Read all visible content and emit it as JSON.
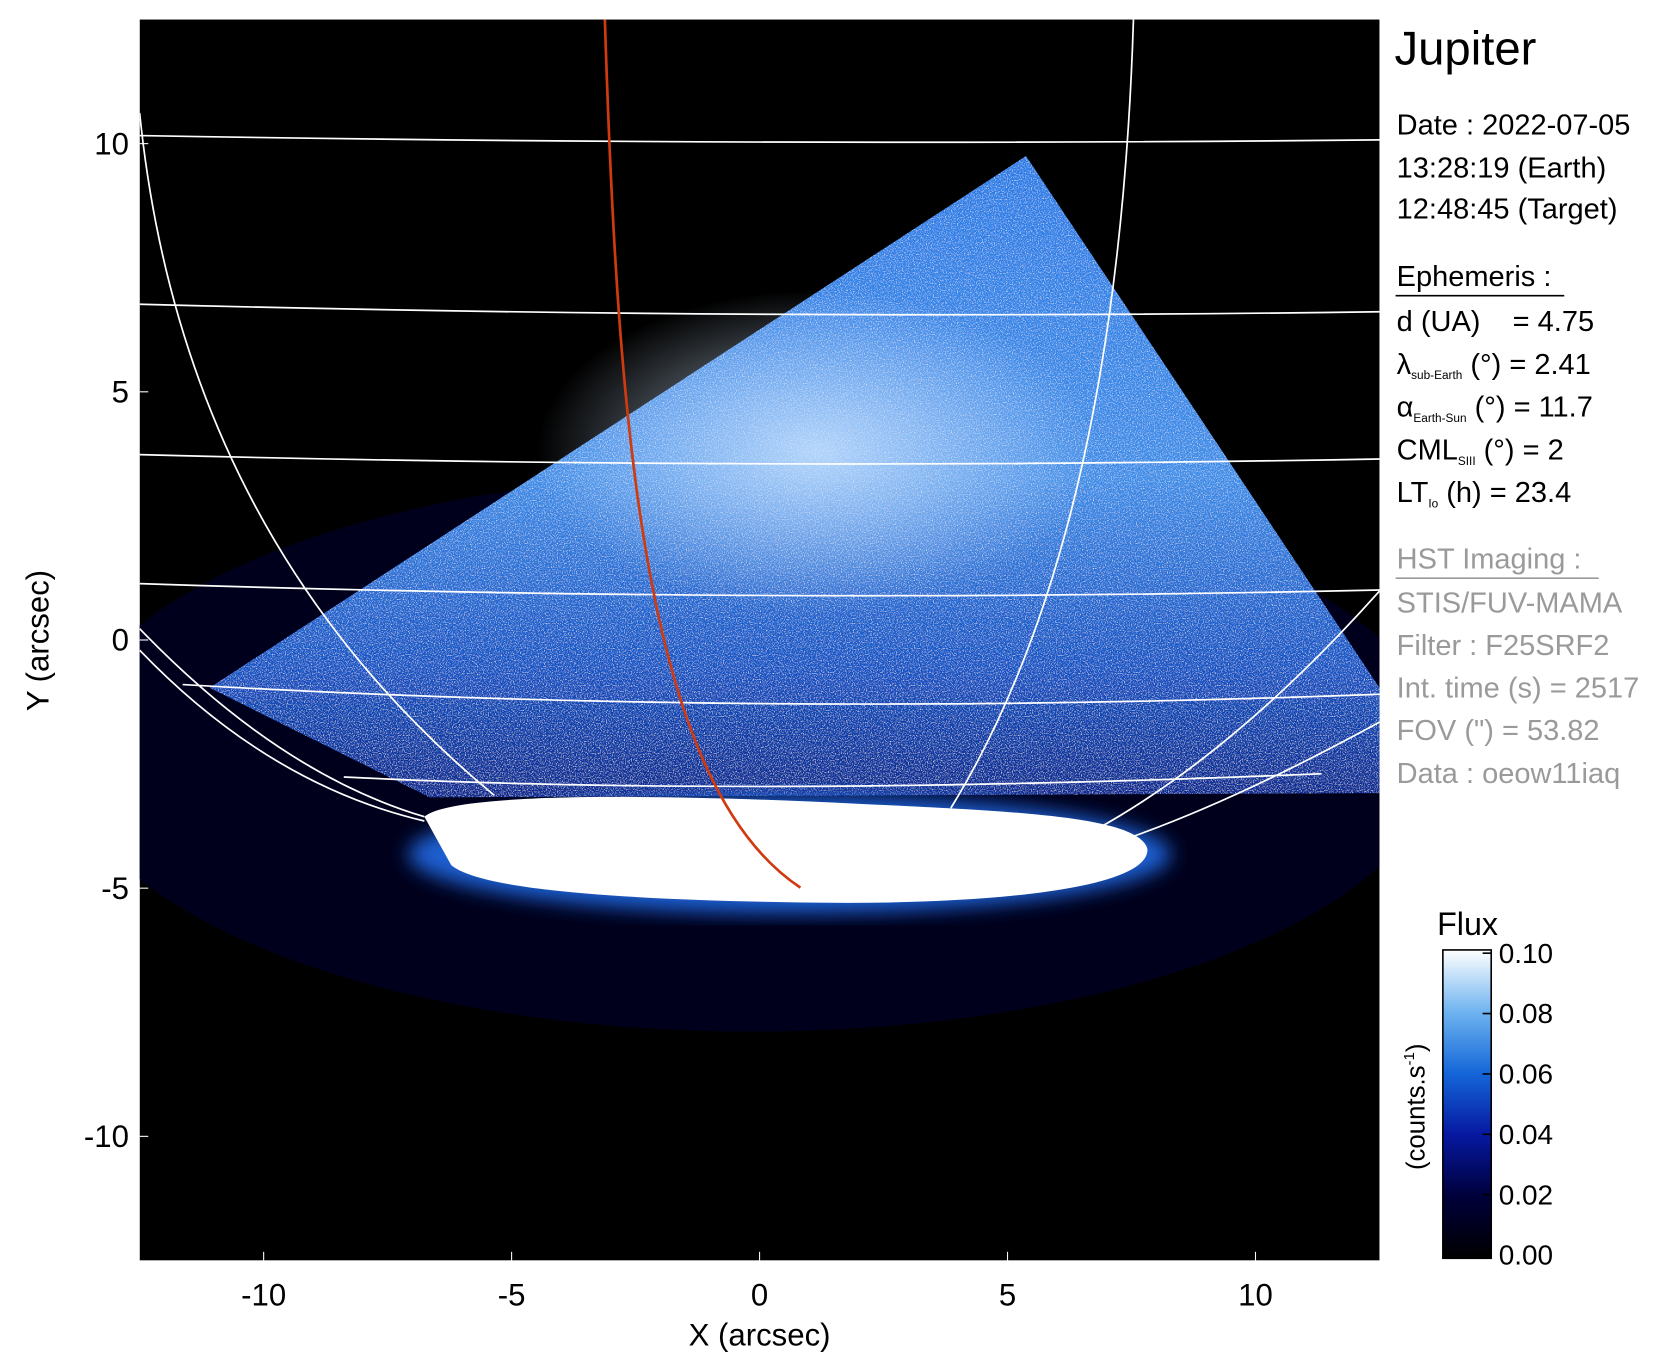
{
  "chart_data": {
    "type": "image",
    "xlabel": "X (arcsec)",
    "ylabel": "Y (arcsec)",
    "xlim": [
      -12.5,
      12.5
    ],
    "ylim": [
      -12.5,
      12.5
    ],
    "xticks": [
      -10,
      -5,
      0,
      5,
      10
    ],
    "yticks": [
      -10,
      -5,
      0,
      5,
      10
    ],
    "colorbar": {
      "title": "Flux",
      "label": "(counts.s",
      "label_sup": "-1",
      "label_end": ")",
      "lim": [
        0,
        0.1
      ],
      "ticks": [
        {
          "value": 0,
          "label": "0.00"
        },
        0.02,
        0.04,
        0.06,
        0.08,
        {
          "value": 0.1,
          "label": "0.10"
        }
      ],
      "colors": [
        "#000000",
        "#00003a",
        "#0618a0",
        "#1466d8",
        "#6fb4f0",
        "#ffffff"
      ]
    }
  },
  "info": {
    "target": "Jupiter",
    "date": [
      "Date : 2022-07-05",
      "13:28:19 (Earth)",
      "12:48:45 (Target)"
    ],
    "ephemeris": {
      "title": "Ephemeris :",
      "rows": [
        {
          "main": "d (UA)    = 4.75"
        },
        {
          "main": "λ",
          "sub": "sub-Earth",
          "rest": " (°) = 2.41"
        },
        {
          "main": "α",
          "sub": "Earth-Sun",
          "rest": " (°) = 11.7"
        },
        {
          "main": "CML",
          "sub": "SIII",
          "rest": " (°) = 2"
        },
        {
          "main": "LT",
          "sub": "Io",
          "rest": " (h) = 23.4"
        }
      ]
    },
    "imaging": {
      "title": "HST Imaging :",
      "rows": [
        "STIS/FUV-MAMA",
        "Filter : F25SRF2",
        "Int. time (s) = 2517",
        "FOV (\") = 53.82",
        "Data : oeow11iaq"
      ]
    }
  }
}
